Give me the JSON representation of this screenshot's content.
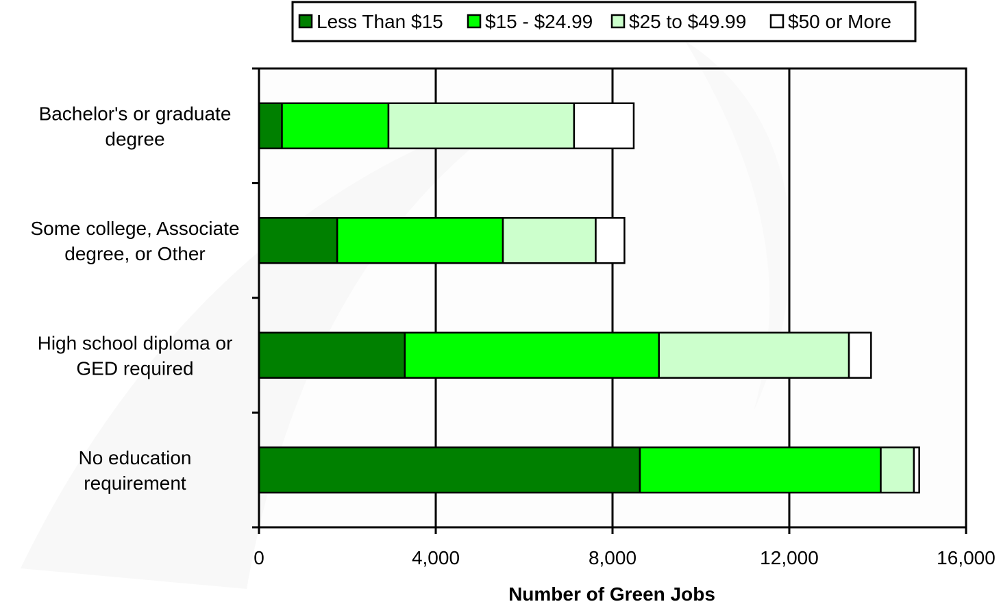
{
  "chart_data": {
    "type": "bar",
    "orientation": "horizontal",
    "stacked": true,
    "title": "",
    "xlabel": "Number of Green Jobs",
    "ylabel": "",
    "xlim": [
      0,
      16000
    ],
    "xticks": [
      0,
      4000,
      8000,
      12000,
      16000
    ],
    "xtick_labels": [
      "0",
      "4,000",
      "8,000",
      "12,000",
      "16,000"
    ],
    "grid": "vertical major gridlines",
    "legend_position": "top-center",
    "categories": [
      [
        "Bachelor's or graduate",
        "degree"
      ],
      [
        "Some college, Associate",
        "degree, or Other"
      ],
      [
        "High school diploma or",
        "GED required"
      ],
      [
        "No education",
        "requirement"
      ]
    ],
    "series": [
      {
        "name": "Less Than $15",
        "color": "#008000",
        "values": [
          520,
          1770,
          3300,
          8620
        ]
      },
      {
        "name": "$15 - $24.99",
        "color": "#00ff00",
        "values": [
          2410,
          3750,
          5750,
          5450
        ]
      },
      {
        "name": "$25 to $49.99",
        "color": "#ccffcc",
        "values": [
          4200,
          2100,
          4300,
          750
        ]
      },
      {
        "name": "$50 or More",
        "color": "#ffffff",
        "values": [
          1350,
          650,
          500,
          120
        ]
      }
    ]
  }
}
